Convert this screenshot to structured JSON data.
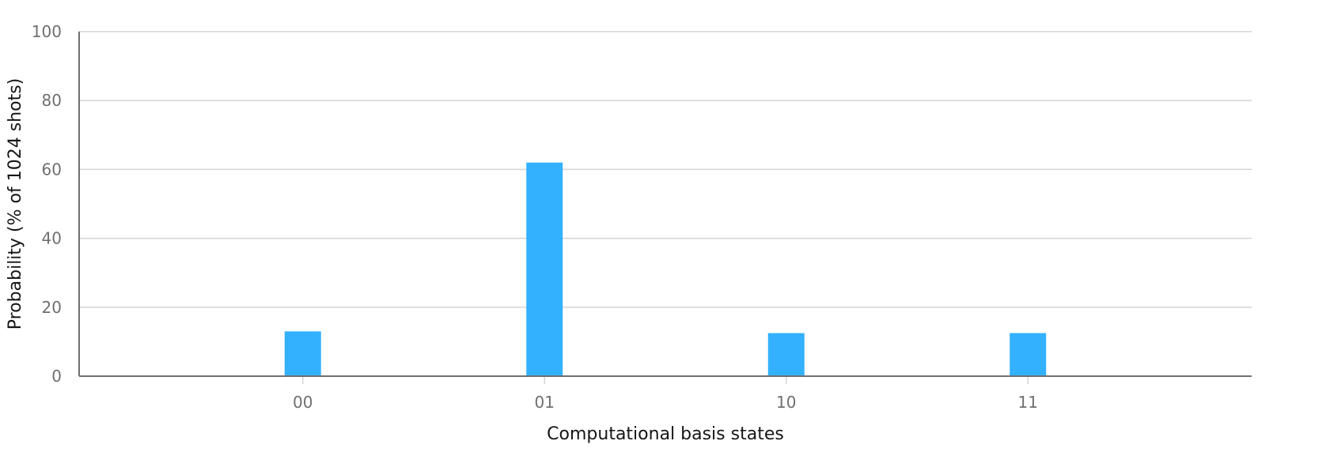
{
  "chart_data": {
    "type": "bar",
    "categories": [
      "00",
      "01",
      "10",
      "11"
    ],
    "values": [
      13.0,
      62.0,
      12.5,
      12.5
    ],
    "title": "",
    "xlabel": "Computational basis states",
    "ylabel": "Probability (% of 1024 shots)",
    "ylim": [
      0,
      100
    ],
    "yticks": [
      0,
      20,
      40,
      60,
      80,
      100
    ],
    "grid": true,
    "bar_color": "#33b1ff",
    "legend": "none"
  }
}
